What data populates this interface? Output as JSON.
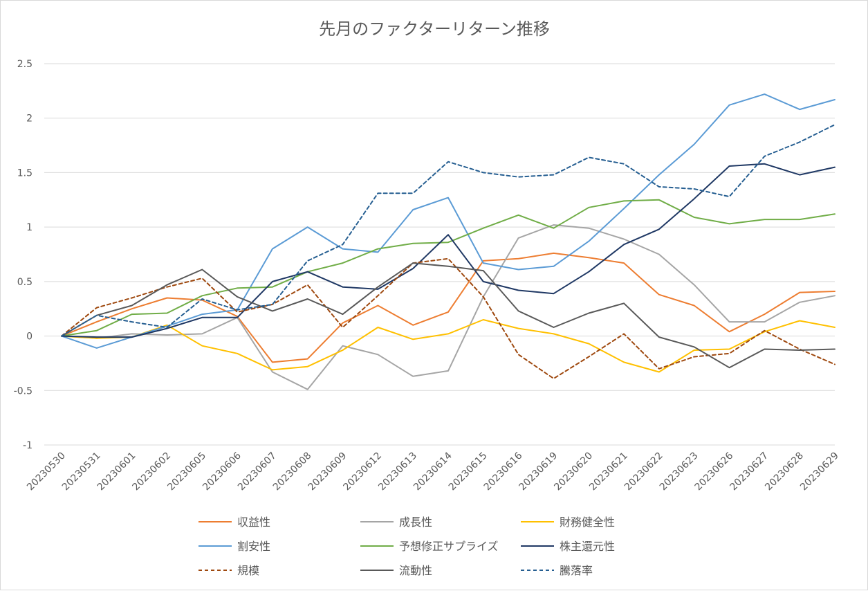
{
  "chart_data": {
    "type": "line",
    "title": "先月のファクターリターン推移",
    "x": [
      "20230530",
      "20230531",
      "20230601",
      "20230602",
      "20230605",
      "20230606",
      "20230607",
      "20230608",
      "20230609",
      "20230612",
      "20230613",
      "20230614",
      "20230615",
      "20230616",
      "20230619",
      "20230620",
      "20230621",
      "20230622",
      "20230623",
      "20230626",
      "20230627",
      "20230628",
      "20230629"
    ],
    "y_ticks": [
      "2.5",
      "2",
      "1.5",
      "1",
      "0.5",
      "0",
      "-0.5",
      "-1"
    ],
    "ylim": [
      -1,
      2.5
    ],
    "grid": true,
    "legend_position": "bottom",
    "series": [
      {
        "name": "収益性",
        "color": "#ED7D31",
        "dash": "solid",
        "values": [
          0,
          0.13,
          0.25,
          0.35,
          0.33,
          0.18,
          -0.24,
          -0.21,
          0.12,
          0.28,
          0.1,
          0.22,
          0.69,
          0.71,
          0.76,
          0.72,
          0.67,
          0.38,
          0.28,
          0.04,
          0.2,
          0.4,
          0.41
        ]
      },
      {
        "name": "成長性",
        "color": "#A5A5A5",
        "dash": "solid",
        "values": [
          0,
          -0.02,
          0.02,
          0.01,
          0.02,
          0.17,
          -0.33,
          -0.49,
          -0.09,
          -0.17,
          -0.37,
          -0.32,
          0.36,
          0.9,
          1.02,
          0.99,
          0.89,
          0.75,
          0.47,
          0.13,
          0.13,
          0.31,
          0.37
        ]
      },
      {
        "name": "財務健全性",
        "color": "#FFC000",
        "dash": "solid",
        "values": [
          0,
          -0.02,
          -0.01,
          0.1,
          -0.09,
          -0.16,
          -0.31,
          -0.28,
          -0.13,
          0.08,
          -0.03,
          0.02,
          0.15,
          0.07,
          0.02,
          -0.07,
          -0.24,
          -0.33,
          -0.13,
          -0.12,
          0.04,
          0.14,
          0.08
        ]
      },
      {
        "name": "割安性",
        "color": "#5B9BD5",
        "dash": "solid",
        "values": [
          0,
          -0.11,
          -0.01,
          0.09,
          0.2,
          0.24,
          0.8,
          1.0,
          0.8,
          0.77,
          1.16,
          1.27,
          0.67,
          0.61,
          0.64,
          0.87,
          1.17,
          1.48,
          1.76,
          2.12,
          2.22,
          2.08,
          2.17
        ]
      },
      {
        "name": "予想修正サプライズ",
        "color": "#70AD47",
        "dash": "solid",
        "values": [
          0,
          0.05,
          0.2,
          0.21,
          0.37,
          0.44,
          0.45,
          0.59,
          0.67,
          0.8,
          0.85,
          0.86,
          0.99,
          1.11,
          0.99,
          1.18,
          1.24,
          1.25,
          1.09,
          1.03,
          1.07,
          1.07,
          1.12
        ]
      },
      {
        "name": "株主還元性",
        "color": "#1F3864",
        "dash": "solid",
        "values": [
          0,
          -0.01,
          -0.01,
          0.07,
          0.17,
          0.17,
          0.5,
          0.59,
          0.45,
          0.43,
          0.62,
          0.93,
          0.5,
          0.42,
          0.39,
          0.59,
          0.84,
          0.98,
          1.26,
          1.56,
          1.58,
          1.48,
          1.55
        ]
      },
      {
        "name": "規模",
        "color": "#9E480E",
        "dash": "dashed",
        "values": [
          0,
          0.26,
          0.35,
          0.45,
          0.53,
          0.22,
          0.29,
          0.47,
          0.08,
          0.37,
          0.67,
          0.71,
          0.36,
          -0.17,
          -0.39,
          -0.19,
          0.02,
          -0.3,
          -0.19,
          -0.16,
          0.05,
          -0.12,
          -0.26
        ]
      },
      {
        "name": "流動性",
        "color": "#595959",
        "dash": "solid",
        "values": [
          0,
          0.19,
          0.28,
          0.47,
          0.61,
          0.36,
          0.23,
          0.34,
          0.2,
          0.45,
          0.67,
          0.64,
          0.6,
          0.23,
          0.08,
          0.21,
          0.3,
          -0.01,
          -0.1,
          -0.29,
          -0.12,
          -0.13,
          -0.12
        ]
      },
      {
        "name": "騰落率",
        "color": "#255E91",
        "dash": "dashed",
        "values": [
          0,
          0.19,
          0.13,
          0.08,
          0.34,
          0.24,
          0.29,
          0.69,
          0.84,
          1.31,
          1.31,
          1.6,
          1.5,
          1.46,
          1.48,
          1.64,
          1.58,
          1.37,
          1.35,
          1.28,
          1.65,
          1.78,
          1.94
        ]
      }
    ],
    "colors": {
      "grid": "#d9d9d9",
      "text": "#595959",
      "border": "#d9d9d9"
    }
  }
}
